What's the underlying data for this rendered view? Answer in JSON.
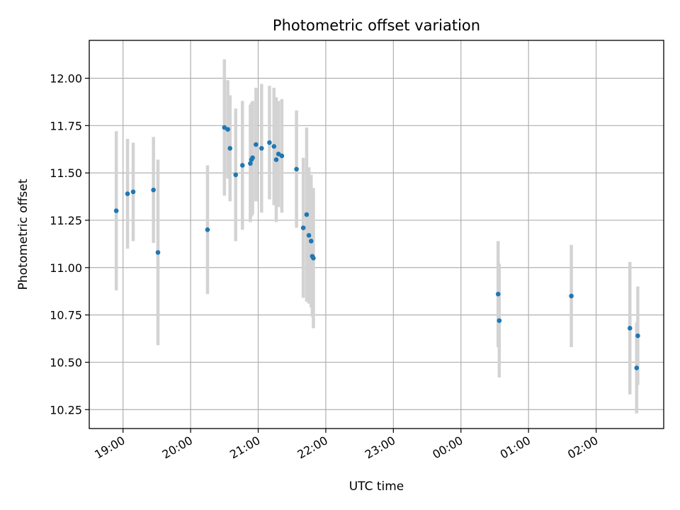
{
  "chart_data": {
    "type": "scatter",
    "title": "Photometric offset variation",
    "xlabel": "UTC time",
    "ylabel": "Photometric offset",
    "x_axis": "time",
    "xlim": [
      "18:30",
      "03:00"
    ],
    "ylim": [
      10.15,
      12.2
    ],
    "grid": true,
    "x_ticks": [
      "19:00",
      "20:00",
      "21:00",
      "22:00",
      "23:00",
      "00:00",
      "01:00",
      "02:00"
    ],
    "y_ticks": [
      "10.25",
      "10.50",
      "10.75",
      "11.00",
      "11.25",
      "11.50",
      "11.75",
      "12.00"
    ],
    "colors": {
      "point": "#1f77b4",
      "error_bar": "#d3d3d3"
    },
    "points": [
      {
        "t": "18:54",
        "y": 11.3,
        "err": 0.42
      },
      {
        "t": "19:04",
        "y": 11.39,
        "err": 0.29
      },
      {
        "t": "19:09",
        "y": 11.4,
        "err": 0.26
      },
      {
        "t": "19:27",
        "y": 11.41,
        "err": 0.28
      },
      {
        "t": "19:31",
        "y": 11.08,
        "err": 0.49
      },
      {
        "t": "20:15",
        "y": 11.2,
        "err": 0.34
      },
      {
        "t": "20:30",
        "y": 11.74,
        "err": 0.36
      },
      {
        "t": "20:33",
        "y": 11.73,
        "err": 0.26
      },
      {
        "t": "20:35",
        "y": 11.63,
        "err": 0.28
      },
      {
        "t": "20:40",
        "y": 11.49,
        "err": 0.35
      },
      {
        "t": "20:46",
        "y": 11.54,
        "err": 0.34
      },
      {
        "t": "20:53",
        "y": 11.55,
        "err": 0.31
      },
      {
        "t": "20:54",
        "y": 11.57,
        "err": 0.3
      },
      {
        "t": "20:55",
        "y": 11.58,
        "err": 0.3
      },
      {
        "t": "20:58",
        "y": 11.65,
        "err": 0.3
      },
      {
        "t": "21:03",
        "y": 11.63,
        "err": 0.34
      },
      {
        "t": "21:10",
        "y": 11.66,
        "err": 0.3
      },
      {
        "t": "21:14",
        "y": 11.64,
        "err": 0.31
      },
      {
        "t": "21:16",
        "y": 11.57,
        "err": 0.33
      },
      {
        "t": "21:18",
        "y": 11.6,
        "err": 0.28
      },
      {
        "t": "21:21",
        "y": 11.59,
        "err": 0.3
      },
      {
        "t": "21:34",
        "y": 11.52,
        "err": 0.31
      },
      {
        "t": "21:40",
        "y": 11.21,
        "err": 0.37
      },
      {
        "t": "21:43",
        "y": 11.28,
        "err": 0.46
      },
      {
        "t": "21:45",
        "y": 11.17,
        "err": 0.36
      },
      {
        "t": "21:47",
        "y": 11.14,
        "err": 0.35
      },
      {
        "t": "21:48",
        "y": 11.06,
        "err": 0.32
      },
      {
        "t": "21:49",
        "y": 11.05,
        "err": 0.37
      },
      {
        "t": "00:33",
        "y": 10.86,
        "err": 0.28
      },
      {
        "t": "00:34",
        "y": 10.72,
        "err": 0.3
      },
      {
        "t": "01:38",
        "y": 10.85,
        "err": 0.27
      },
      {
        "t": "02:30",
        "y": 10.68,
        "err": 0.35
      },
      {
        "t": "02:36",
        "y": 10.47,
        "err": 0.24
      },
      {
        "t": "02:37",
        "y": 10.64,
        "err": 0.26
      }
    ]
  }
}
